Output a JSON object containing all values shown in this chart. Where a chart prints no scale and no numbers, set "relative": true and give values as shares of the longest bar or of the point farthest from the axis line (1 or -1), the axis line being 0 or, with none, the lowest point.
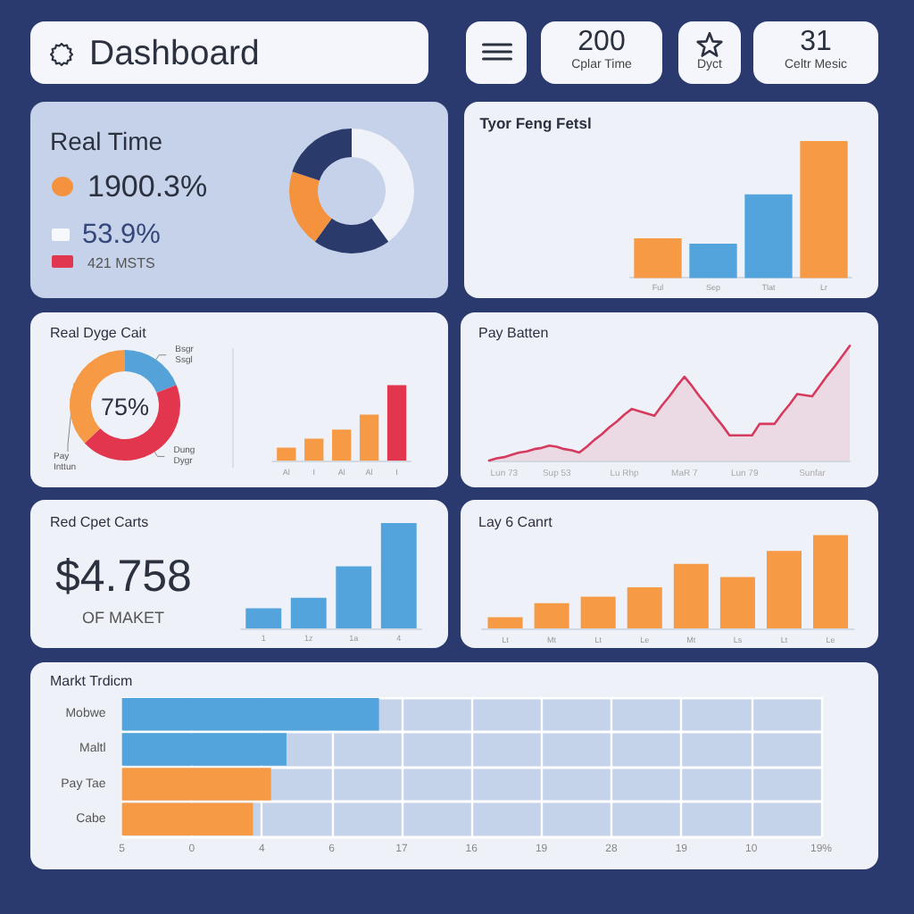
{
  "chart_data": [
    {
      "type": "other",
      "title": "Dashboard",
      "annotations": [
        "200",
        "Cplar Time",
        "Dyct",
        "31",
        "Celtr Mesic"
      ]
    },
    {
      "type": "donut",
      "title": "Real Time",
      "categories": [
        null,
        null,
        null,
        null
      ],
      "values": [
        40,
        20,
        20,
        20
      ],
      "colors": [
        "#eff2f8",
        "#2a3a6b",
        "#f4923e",
        "#2a3a6b"
      ],
      "annotations": [
        "1900.3%",
        "53.9%",
        "421 MSTS"
      ]
    },
    {
      "type": "bar",
      "title": "Tyor Feng Fetsl",
      "categories": [
        "Ful",
        "Sep",
        "Tlat",
        "Lr"
      ],
      "values": [
        0.29,
        0.25,
        0.61,
        1
      ],
      "colors": [
        "#f79a45",
        "#53a4dc",
        "#53a4dc",
        "#f79a45"
      ],
      "relative": true
    },
    {
      "type": "donut",
      "title": "Real Dyge Cait",
      "categories": [
        "Bsgr Ssgl",
        "Dung Dygr",
        "Pay Inttun"
      ],
      "values": [
        19,
        44,
        37
      ],
      "colors": [
        "#55a2d8",
        "#e2364f",
        "#f79a45"
      ],
      "annotations": [
        "75%"
      ]
    },
    {
      "type": "bar",
      "categories": [
        "Al",
        "I",
        "Al",
        "Al",
        "I"
      ],
      "values": [
        0.17,
        0.29,
        0.41,
        0.61,
        1
      ],
      "colors": [
        "#f79a45",
        "#f79a45",
        "#f79a45",
        "#f79a45",
        "#e2364f"
      ],
      "relative": true
    },
    {
      "type": "area",
      "title": "Pay Batten",
      "categories": [
        null,
        null,
        "Lun 73",
        null,
        null,
        null,
        null,
        null,
        null,
        "Sup 53",
        null,
        null,
        null,
        null,
        null,
        null,
        null,
        null,
        "Lu Rhp",
        null,
        null,
        null,
        null,
        null,
        null,
        null,
        "MaR 7",
        null,
        null,
        null,
        null,
        null,
        null,
        null,
        "Lun 79",
        null,
        null,
        null,
        null,
        null,
        null,
        null,
        null,
        "Sunfar",
        null,
        null,
        null,
        null,
        null
      ],
      "values": [
        0,
        0.02,
        0.03,
        0.05,
        0.07,
        0.08,
        0.1,
        0.11,
        0.13,
        0.12,
        0.1,
        0.09,
        0.07,
        0.12,
        0.18,
        0.23,
        0.29,
        0.34,
        0.4,
        0.45,
        0.43,
        0.41,
        0.39,
        0.48,
        0.56,
        0.65,
        0.73,
        0.65,
        0.56,
        0.48,
        0.39,
        0.31,
        0.22,
        0.22,
        0.22,
        0.22,
        0.32,
        0.32,
        0.32,
        0.41,
        0.49,
        0.58,
        0.57,
        0.56,
        0.65,
        0.74,
        0.82,
        0.91,
        1
      ],
      "color": "#d63a5e",
      "relative": true
    },
    {
      "type": "other",
      "title": "Red Cpet Carts",
      "annotations": [
        "$4.758",
        "OF MAKET"
      ]
    },
    {
      "type": "bar",
      "categories": [
        "1",
        "1z",
        "1a",
        "4"
      ],
      "values": [
        0.19,
        0.29,
        0.59,
        1
      ],
      "color": "#53a4dc",
      "relative": true
    },
    {
      "type": "bar",
      "title": "Lay 6 Canrt",
      "categories": [
        "Lt",
        "Mt",
        "Lt",
        "Le",
        "Mt",
        "Ls",
        "Lt",
        "Le"
      ],
      "values": [
        0.12,
        0.27,
        0.34,
        0.44,
        0.69,
        0.55,
        0.83,
        1
      ],
      "color": "#f79a45",
      "relative": true
    },
    {
      "type": "bar",
      "orientation": "horizontal",
      "title": "Markt Trdicm",
      "categories": [
        "Mobwe",
        "Maltl",
        "Pay Tae",
        "Cabe"
      ],
      "values": [
        1,
        0.64,
        0.58,
        0.51
      ],
      "colors": [
        "#53a4dc",
        "#53a4dc",
        "#f79a45",
        "#f79a45"
      ],
      "relative": true,
      "grid": true,
      "annotations": [
        "5",
        "0",
        "4",
        "6",
        "17",
        "16",
        "19",
        "28",
        "19",
        "10",
        "19%"
      ]
    }
  ]
}
